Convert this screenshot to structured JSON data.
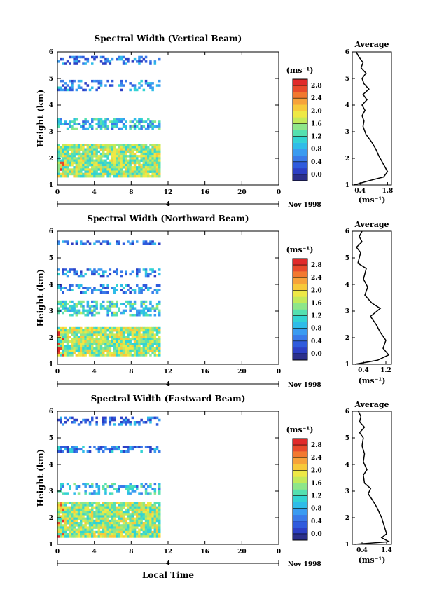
{
  "figure": {
    "date_label": "Nov 1998",
    "local_time_label": "Local Time",
    "day_label": "4"
  },
  "chart_data": [
    {
      "type": "heatmap",
      "title": "Spectral Width (Vertical Beam)",
      "xlabel": "",
      "ylabel": "Height (km)",
      "xlim": [
        0,
        24
      ],
      "ylim": [
        1,
        6
      ],
      "x_ticks": [
        "0",
        "4",
        "8",
        "12",
        "16",
        "20",
        "0"
      ],
      "y_ticks": [
        "1",
        "2",
        "3",
        "4",
        "5",
        "6"
      ],
      "data_extent_hours": [
        0,
        11
      ],
      "layers_km": [
        {
          "from": 1.35,
          "to": 2.55,
          "density": 0.95,
          "level": 0.55
        },
        {
          "from": 3.1,
          "to": 3.5,
          "density": 0.6,
          "level": 0.35
        },
        {
          "from": 4.6,
          "to": 4.95,
          "density": 0.35,
          "level": 0.25
        },
        {
          "from": 5.55,
          "to": 5.85,
          "density": 0.4,
          "level": 0.2
        }
      ],
      "colorbar": {
        "unit": "(ms⁻¹)",
        "ticks": [
          "0.0",
          "0.4",
          "0.8",
          "1.2",
          "1.6",
          "2.0",
          "2.4",
          "2.8"
        ]
      },
      "average": {
        "title": "Average",
        "xlabel": "(ms⁻¹)",
        "x_ticks": [
          "0.4",
          "1.8"
        ],
        "xlim": [
          0.0,
          2.0
        ],
        "y_ticks": [
          "1",
          "2",
          "3",
          "4",
          "5",
          "6"
        ],
        "profile": [
          [
            0.1,
            1.0
          ],
          [
            0.8,
            1.15
          ],
          [
            1.6,
            1.3
          ],
          [
            1.8,
            1.5
          ],
          [
            1.65,
            1.7
          ],
          [
            1.5,
            1.9
          ],
          [
            1.35,
            2.1
          ],
          [
            1.2,
            2.35
          ],
          [
            1.0,
            2.6
          ],
          [
            0.7,
            2.9
          ],
          [
            0.55,
            3.2
          ],
          [
            0.6,
            3.4
          ],
          [
            0.5,
            3.6
          ],
          [
            0.65,
            3.8
          ],
          [
            0.5,
            4.0
          ],
          [
            0.75,
            4.2
          ],
          [
            0.55,
            4.4
          ],
          [
            0.85,
            4.6
          ],
          [
            0.6,
            4.8
          ],
          [
            0.5,
            5.0
          ],
          [
            0.7,
            5.2
          ],
          [
            0.45,
            5.4
          ],
          [
            0.55,
            5.6
          ],
          [
            0.35,
            5.8
          ],
          [
            0.2,
            6.0
          ]
        ]
      }
    },
    {
      "type": "heatmap",
      "title": "Spectral Width (Northward Beam)",
      "xlabel": "",
      "ylabel": "Height (km)",
      "xlim": [
        0,
        24
      ],
      "ylim": [
        1,
        6
      ],
      "x_ticks": [
        "0",
        "4",
        "8",
        "12",
        "16",
        "20",
        "0"
      ],
      "y_ticks": [
        "1",
        "2",
        "3",
        "4",
        "5",
        "6"
      ],
      "data_extent_hours": [
        0,
        11
      ],
      "layers_km": [
        {
          "from": 1.35,
          "to": 2.4,
          "density": 0.95,
          "level": 0.55
        },
        {
          "from": 2.85,
          "to": 3.4,
          "density": 0.55,
          "level": 0.4
        },
        {
          "from": 3.7,
          "to": 4.0,
          "density": 0.4,
          "level": 0.25
        },
        {
          "from": 4.3,
          "to": 4.6,
          "density": 0.4,
          "level": 0.25
        },
        {
          "from": 5.5,
          "to": 5.65,
          "density": 0.5,
          "level": 0.2
        }
      ],
      "colorbar": {
        "unit": "(ms⁻¹)",
        "ticks": [
          "0.0",
          "0.4",
          "0.8",
          "1.2",
          "1.6",
          "2.0",
          "2.4",
          "2.8"
        ]
      },
      "average": {
        "title": "Average",
        "xlabel": "(ms⁻¹)",
        "x_ticks": [
          "0.4",
          "1.2"
        ],
        "xlim": [
          0.0,
          1.4
        ],
        "y_ticks": [
          "1",
          "2",
          "3",
          "4",
          "5",
          "6"
        ],
        "profile": [
          [
            0.1,
            1.0
          ],
          [
            0.9,
            1.15
          ],
          [
            1.3,
            1.35
          ],
          [
            1.1,
            1.6
          ],
          [
            1.2,
            1.9
          ],
          [
            1.0,
            2.2
          ],
          [
            0.85,
            2.5
          ],
          [
            0.65,
            2.8
          ],
          [
            1.0,
            3.1
          ],
          [
            0.7,
            3.3
          ],
          [
            0.45,
            3.6
          ],
          [
            0.55,
            3.9
          ],
          [
            0.4,
            4.2
          ],
          [
            0.5,
            4.6
          ],
          [
            0.2,
            4.8
          ],
          [
            0.3,
            5.2
          ],
          [
            0.15,
            5.4
          ],
          [
            0.35,
            5.6
          ],
          [
            0.25,
            5.8
          ],
          [
            0.35,
            6.0
          ]
        ]
      }
    },
    {
      "type": "heatmap",
      "title": "Spectral Width (Eastward Beam)",
      "xlabel": "",
      "ylabel": "Height (km)",
      "xlim": [
        0,
        24
      ],
      "ylim": [
        1,
        6
      ],
      "x_ticks": [
        "0",
        "4",
        "8",
        "12",
        "16",
        "20",
        "0"
      ],
      "y_ticks": [
        "1",
        "2",
        "3",
        "4",
        "5",
        "6"
      ],
      "data_extent_hours": [
        0,
        11
      ],
      "layers_km": [
        {
          "from": 1.3,
          "to": 2.6,
          "density": 0.95,
          "level": 0.55
        },
        {
          "from": 2.9,
          "to": 3.3,
          "density": 0.4,
          "level": 0.35
        },
        {
          "from": 4.45,
          "to": 4.7,
          "density": 0.55,
          "level": 0.25
        },
        {
          "from": 5.5,
          "to": 5.8,
          "density": 0.4,
          "level": 0.2
        }
      ],
      "colorbar": {
        "unit": "(ms⁻¹)",
        "ticks": [
          "0.0",
          "0.4",
          "0.8",
          "1.2",
          "1.6",
          "2.0",
          "2.4",
          "2.8"
        ]
      },
      "average": {
        "title": "Average",
        "xlabel": "(ms⁻¹)",
        "x_ticks": [
          "0.4",
          "1.4"
        ],
        "xlim": [
          0.0,
          1.6
        ],
        "y_ticks": [
          "1",
          "2",
          "3",
          "4",
          "5",
          "6"
        ],
        "profile": [
          [
            0.1,
            1.0
          ],
          [
            1.5,
            1.1
          ],
          [
            1.2,
            1.25
          ],
          [
            1.4,
            1.4
          ],
          [
            1.3,
            1.7
          ],
          [
            1.2,
            2.0
          ],
          [
            1.0,
            2.4
          ],
          [
            0.8,
            2.7
          ],
          [
            0.65,
            2.9
          ],
          [
            0.75,
            3.1
          ],
          [
            0.5,
            3.3
          ],
          [
            0.45,
            3.6
          ],
          [
            0.6,
            3.8
          ],
          [
            0.45,
            4.1
          ],
          [
            0.5,
            4.4
          ],
          [
            0.4,
            4.7
          ],
          [
            0.45,
            5.0
          ],
          [
            0.3,
            5.2
          ],
          [
            0.5,
            5.4
          ],
          [
            0.3,
            5.6
          ],
          [
            0.35,
            5.8
          ],
          [
            0.25,
            6.0
          ]
        ]
      }
    }
  ]
}
